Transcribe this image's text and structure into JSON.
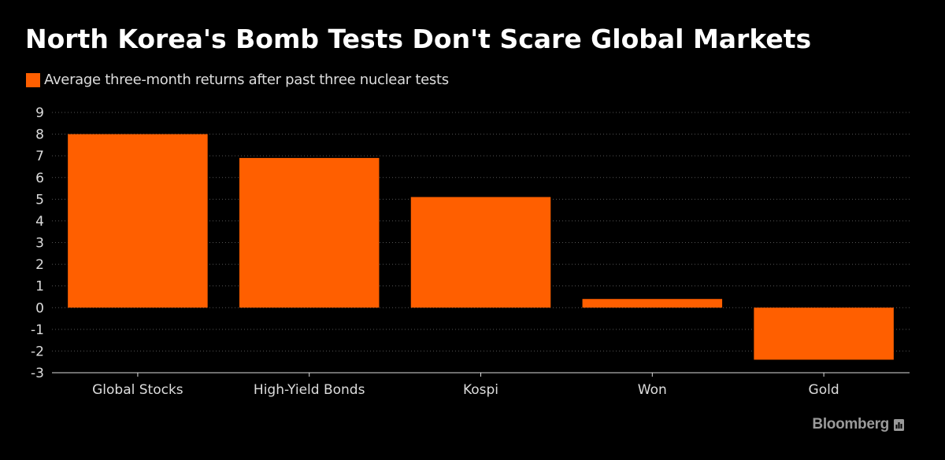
{
  "title": "North Korea's Bomb Tests Don't Scare Global Markets",
  "legend": {
    "label": "Average three-month returns after past three nuclear tests",
    "color": "#ff5f00"
  },
  "brand": {
    "name": "Bloomberg",
    "icon": "bloomberg-chart-icon"
  },
  "colors": {
    "background": "#000000",
    "bar": "#ff5f00",
    "grid": "#555555",
    "axis": "#dddddd",
    "text": "#dddddd"
  },
  "chart_data": {
    "type": "bar",
    "title": "North Korea's Bomb Tests Don't Scare Global Markets",
    "categories": [
      "Global Stocks",
      "High-Yield Bonds",
      "Kospi",
      "Won",
      "Gold"
    ],
    "series": [
      {
        "name": "Average three-month returns after past three nuclear tests",
        "values": [
          8.0,
          6.9,
          5.1,
          0.4,
          -2.4
        ]
      }
    ],
    "xlabel": "",
    "ylabel": "",
    "ylim": [
      -3,
      9
    ],
    "yticks": [
      "9",
      "8",
      "7",
      "6",
      "5",
      "4",
      "3",
      "2",
      "1",
      "0",
      "-1",
      "-2",
      "-3"
    ],
    "grid": true,
    "legend_position": "top-left"
  }
}
